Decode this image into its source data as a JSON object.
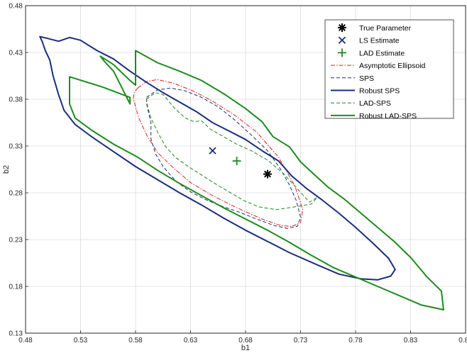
{
  "chart_data": {
    "type": "line",
    "title": "",
    "xlabel": "b1",
    "ylabel": "b2",
    "xlim": [
      0.48,
      0.88
    ],
    "ylim": [
      0.13,
      0.48
    ],
    "xticks": [
      0.48,
      0.53,
      0.58,
      0.63,
      0.68,
      0.73,
      0.78,
      0.83,
      0.88
    ],
    "xtick_labels": [
      "0.48",
      "0.53",
      "0.58",
      "0.63",
      "0.68",
      "0.73",
      "0.78",
      "0.83",
      "0.88"
    ],
    "yticks": [
      0.13,
      0.18,
      0.23,
      0.28,
      0.33,
      0.38,
      0.43,
      0.48
    ],
    "ytick_labels": [
      "0.13",
      "0.18",
      "0.23",
      "0.28",
      "0.33",
      "0.38",
      "0.43",
      "0.48"
    ],
    "grid": true,
    "legend_position": "top-right",
    "colors": {
      "black": "#000000",
      "navy": "#1a2e7a",
      "red": "#e02020",
      "green": "#1f8a1f"
    },
    "points": [
      {
        "name": "True Parameter",
        "x": 0.7,
        "y": 0.3,
        "marker": "asterisk",
        "color": "#000000"
      },
      {
        "name": "LS Estimate",
        "x": 0.65,
        "y": 0.325,
        "marker": "x",
        "color": "#1a2e7a"
      },
      {
        "name": "LAD Estimate",
        "x": 0.672,
        "y": 0.314,
        "marker": "plus",
        "color": "#1f8a1f"
      }
    ],
    "series": [
      {
        "name": "Asymptotic Ellipsoid",
        "color": "#e02020",
        "style": "dashdot",
        "width": 1.0,
        "closed": true,
        "x": [
          0.582,
          0.59,
          0.6,
          0.615,
          0.632,
          0.65,
          0.67,
          0.69,
          0.71,
          0.725,
          0.732,
          0.73,
          0.722,
          0.712,
          0.695,
          0.672,
          0.65,
          0.63,
          0.615,
          0.6,
          0.59,
          0.583,
          0.58,
          0.578,
          0.579
        ],
        "y": [
          0.392,
          0.399,
          0.401,
          0.397,
          0.389,
          0.378,
          0.363,
          0.345,
          0.318,
          0.287,
          0.262,
          0.248,
          0.244,
          0.245,
          0.252,
          0.264,
          0.277,
          0.291,
          0.306,
          0.323,
          0.342,
          0.36,
          0.372,
          0.381,
          0.388
        ]
      },
      {
        "name": "SPS",
        "color": "#1a2e7a",
        "style": "dashed",
        "width": 1.0,
        "closed": true,
        "x": [
          0.59,
          0.6,
          0.612,
          0.625,
          0.64,
          0.655,
          0.67,
          0.685,
          0.7,
          0.712,
          0.72,
          0.726,
          0.73,
          0.727,
          0.718,
          0.706,
          0.69,
          0.675,
          0.66,
          0.645,
          0.63,
          0.617,
          0.605,
          0.598,
          0.594,
          0.594,
          0.591,
          0.59
        ],
        "y": [
          0.382,
          0.39,
          0.392,
          0.389,
          0.382,
          0.372,
          0.358,
          0.342,
          0.325,
          0.305,
          0.288,
          0.272,
          0.254,
          0.244,
          0.242,
          0.245,
          0.252,
          0.259,
          0.265,
          0.272,
          0.281,
          0.292,
          0.308,
          0.322,
          0.338,
          0.355,
          0.37,
          0.376
        ]
      },
      {
        "name": "Robust SPS",
        "color": "#1a2e7a",
        "style": "solid",
        "width": 2.0,
        "closed": true,
        "x": [
          0.493,
          0.5,
          0.51,
          0.52,
          0.53,
          0.545,
          0.56,
          0.575,
          0.59,
          0.605,
          0.62,
          0.635,
          0.65,
          0.665,
          0.68,
          0.695,
          0.71,
          0.722,
          0.735,
          0.75,
          0.765,
          0.78,
          0.795,
          0.81,
          0.816,
          0.812,
          0.8,
          0.785,
          0.765,
          0.745,
          0.72,
          0.7,
          0.68,
          0.66,
          0.64,
          0.62,
          0.6,
          0.58,
          0.56,
          0.54,
          0.525,
          0.515,
          0.51,
          0.505,
          0.502,
          0.498,
          0.495
        ],
        "y": [
          0.447,
          0.445,
          0.442,
          0.446,
          0.443,
          0.432,
          0.423,
          0.41,
          0.398,
          0.387,
          0.377,
          0.367,
          0.355,
          0.346,
          0.337,
          0.325,
          0.314,
          0.298,
          0.285,
          0.272,
          0.258,
          0.243,
          0.227,
          0.21,
          0.198,
          0.191,
          0.187,
          0.188,
          0.193,
          0.203,
          0.216,
          0.228,
          0.24,
          0.253,
          0.267,
          0.28,
          0.294,
          0.308,
          0.324,
          0.34,
          0.353,
          0.368,
          0.385,
          0.405,
          0.422,
          0.432,
          0.442
        ]
      },
      {
        "name": "LAD-SPS",
        "color": "#1f8a1f",
        "style": "dashed",
        "width": 1.0,
        "closed": true,
        "x": [
          0.59,
          0.598,
          0.605,
          0.615,
          0.625,
          0.633,
          0.64,
          0.648,
          0.66,
          0.672,
          0.685,
          0.7,
          0.715,
          0.728,
          0.738,
          0.745,
          0.74,
          0.725,
          0.708,
          0.692,
          0.678,
          0.665,
          0.652,
          0.64,
          0.628,
          0.616,
          0.607,
          0.6,
          0.594,
          0.591
        ],
        "y": [
          0.38,
          0.387,
          0.385,
          0.371,
          0.36,
          0.356,
          0.357,
          0.348,
          0.34,
          0.332,
          0.325,
          0.315,
          0.3,
          0.283,
          0.27,
          0.275,
          0.268,
          0.265,
          0.262,
          0.265,
          0.272,
          0.281,
          0.29,
          0.299,
          0.308,
          0.318,
          0.33,
          0.345,
          0.36,
          0.372
        ]
      },
      {
        "name": "Robust LAD-SPS",
        "color": "#1f8a1f",
        "style": "solid",
        "width": 2.0,
        "closed": true,
        "x": [
          0.548,
          0.56,
          0.575,
          0.58,
          0.58,
          0.6,
          0.62,
          0.64,
          0.66,
          0.68,
          0.695,
          0.705,
          0.72,
          0.73,
          0.742,
          0.755,
          0.77,
          0.785,
          0.8,
          0.815,
          0.83,
          0.845,
          0.858,
          0.86,
          0.84,
          0.82,
          0.8,
          0.78,
          0.76,
          0.74,
          0.72,
          0.7,
          0.68,
          0.66,
          0.64,
          0.62,
          0.6,
          0.582,
          0.56,
          0.54,
          0.525,
          0.52,
          0.52,
          0.55,
          0.575,
          0.575,
          0.56,
          0.552
        ],
        "y": [
          0.426,
          0.417,
          0.4,
          0.395,
          0.432,
          0.419,
          0.41,
          0.4,
          0.386,
          0.37,
          0.356,
          0.34,
          0.329,
          0.313,
          0.3,
          0.286,
          0.273,
          0.258,
          0.243,
          0.228,
          0.211,
          0.19,
          0.175,
          0.155,
          0.16,
          0.17,
          0.18,
          0.19,
          0.2,
          0.213,
          0.227,
          0.24,
          0.252,
          0.264,
          0.277,
          0.29,
          0.304,
          0.318,
          0.332,
          0.347,
          0.36,
          0.375,
          0.404,
          0.393,
          0.382,
          0.375,
          0.41,
          0.42
        ]
      }
    ]
  }
}
